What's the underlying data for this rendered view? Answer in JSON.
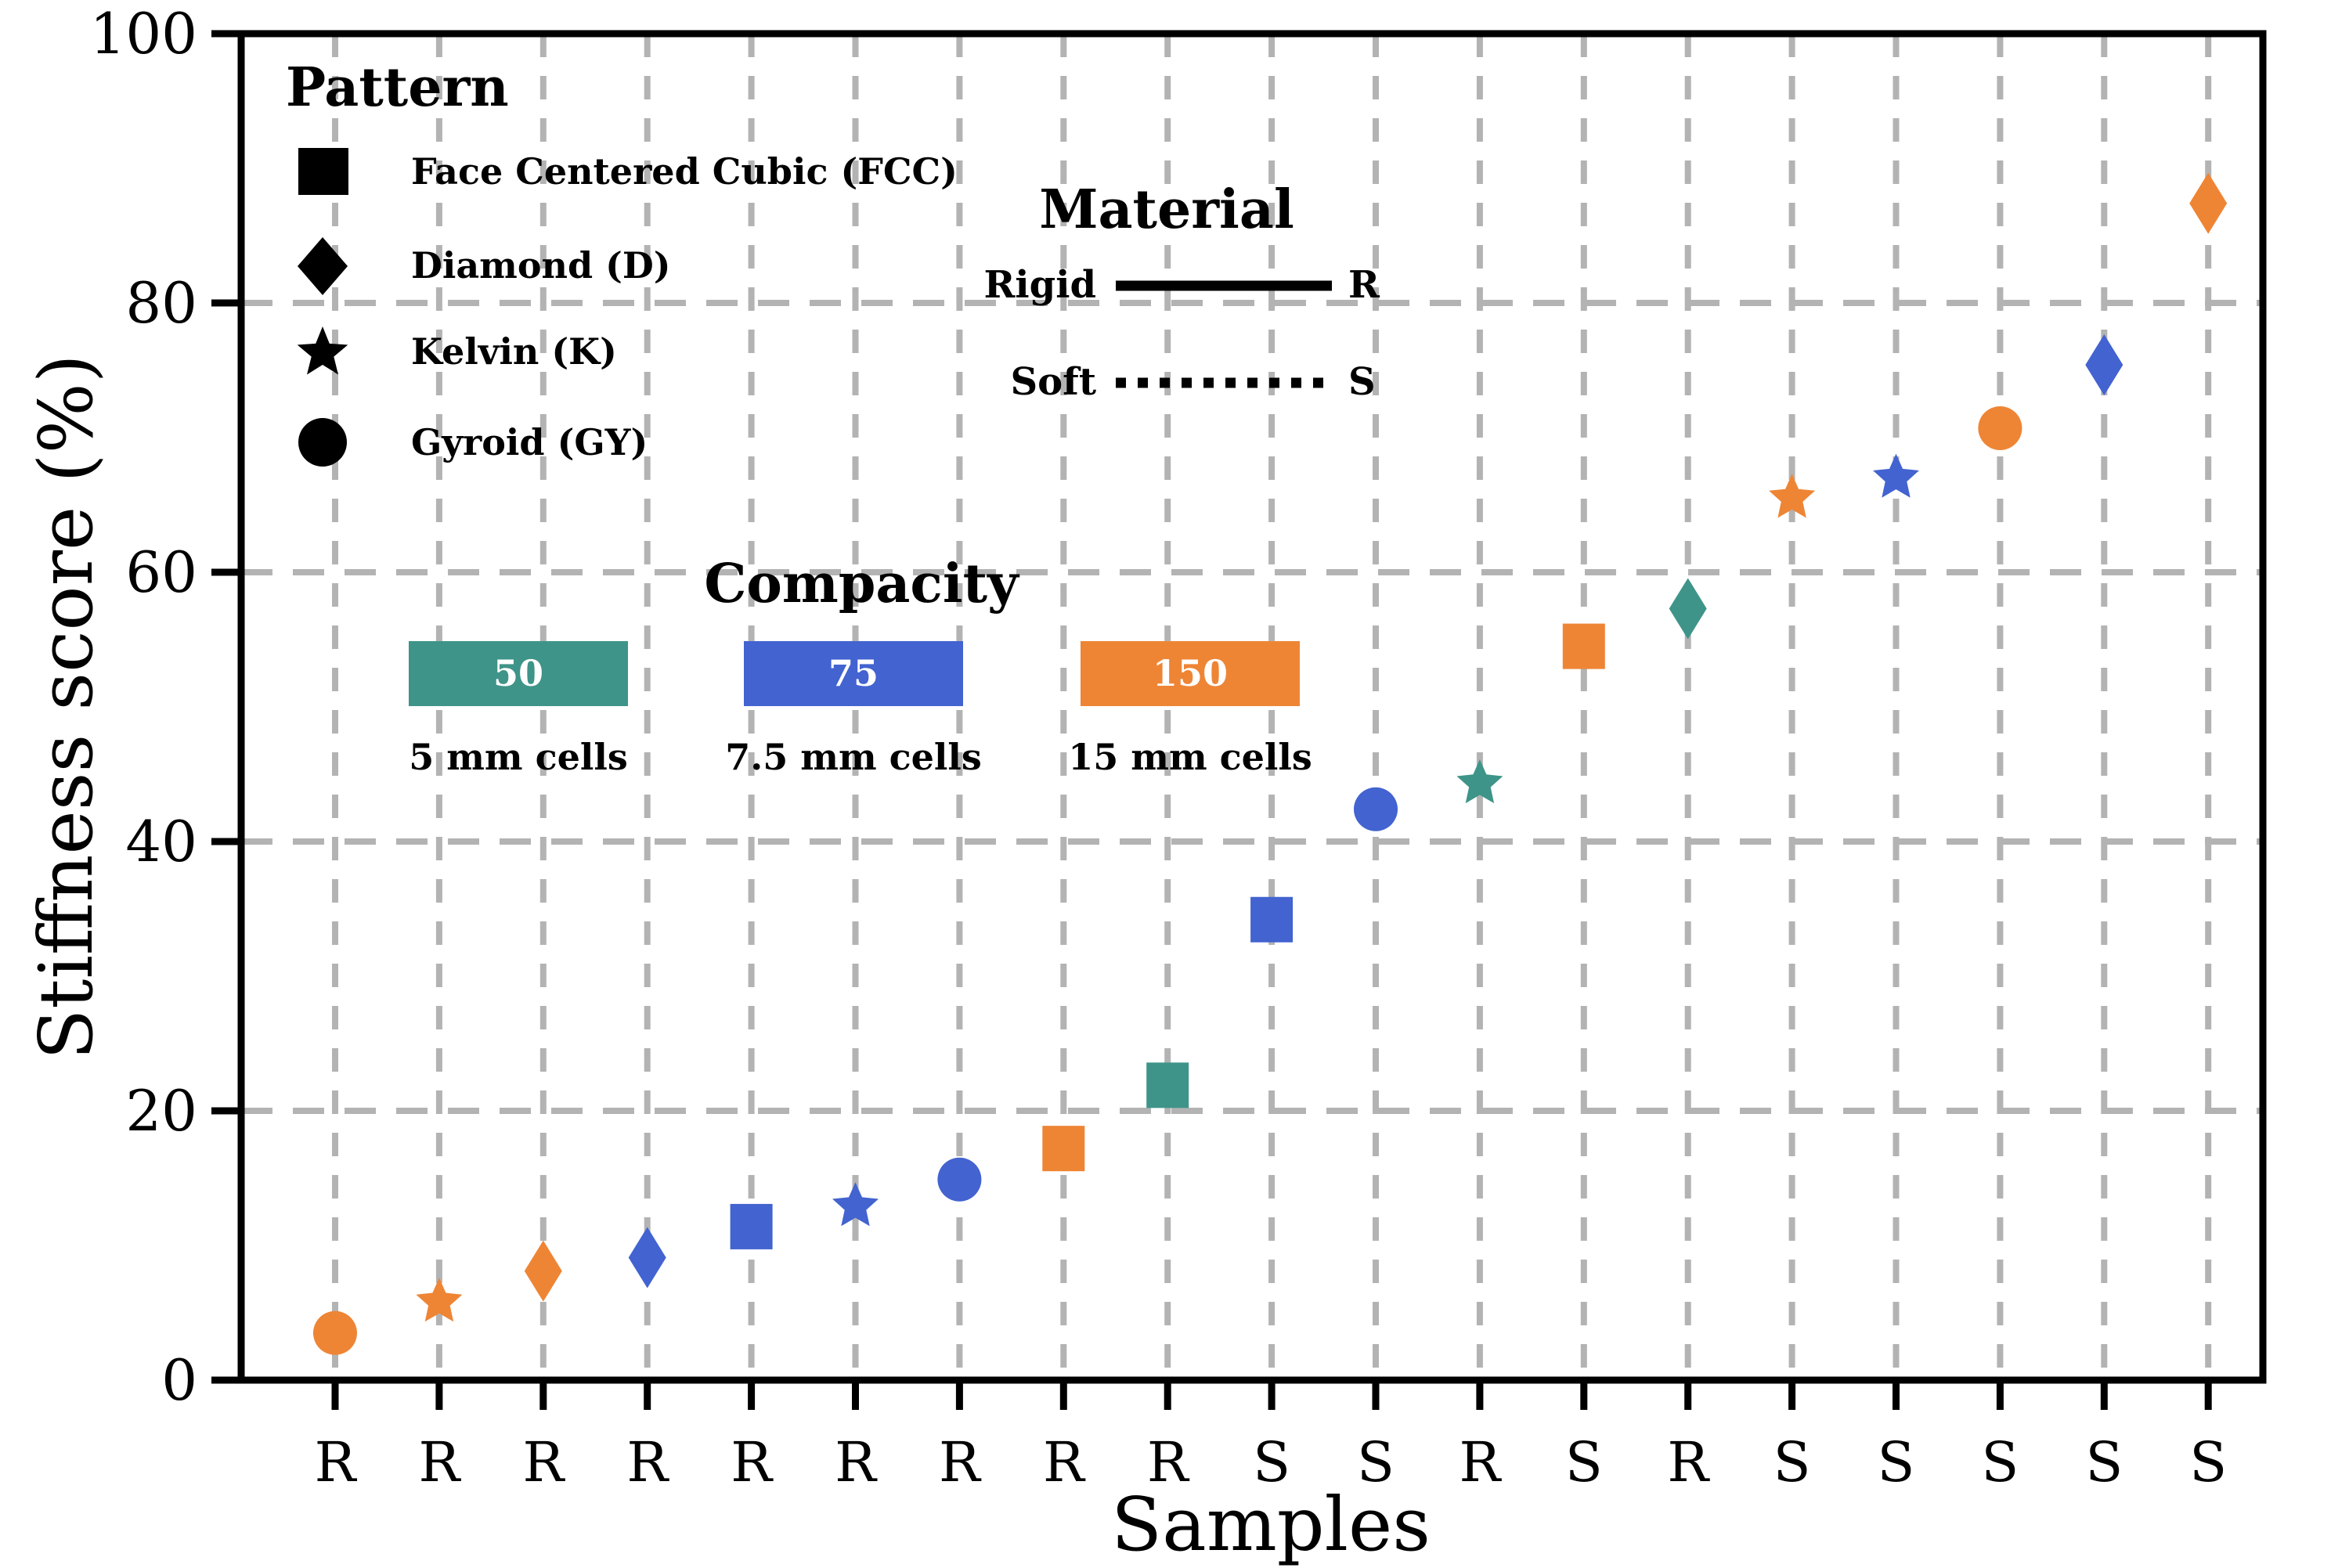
{
  "y_axis": {
    "title": "Stiffness score (%)",
    "tick_labels": [
      "0",
      "20",
      "40",
      "60",
      "80",
      "100"
    ]
  },
  "x_axis": {
    "title": "Samples"
  },
  "legend_pattern": {
    "title": "Pattern",
    "items": [
      {
        "icon": "square-icon",
        "label": "Face Centered Cubic (FCC)"
      },
      {
        "icon": "diamond-icon",
        "label": "Diamond (D)"
      },
      {
        "icon": "star-icon",
        "label": "Kelvin (K)"
      },
      {
        "icon": "circle-icon",
        "label": "Gyroid (GY)"
      }
    ]
  },
  "legend_material": {
    "title": "Material",
    "items": [
      {
        "label": "Rigid",
        "line_style": "solid",
        "code": "R"
      },
      {
        "label": "Soft",
        "line_style": "dotted",
        "code": "S"
      }
    ]
  },
  "legend_compacity": {
    "title": "Compacity",
    "items": [
      {
        "value": "50",
        "caption": "5 mm cells",
        "color": "#3E9488"
      },
      {
        "value": "75",
        "caption": "7.5 mm cells",
        "color": "#4263D0"
      },
      {
        "value": "150",
        "caption": "15 mm cells",
        "color": "#EE8535"
      }
    ]
  },
  "colors": {
    "axis": "#000000",
    "grid": "#b3b3b3",
    "compacity_50": "#3E9488",
    "compacity_75": "#4263D0",
    "compacity_150": "#EE8535"
  },
  "chart_data": {
    "type": "scatter",
    "title": "",
    "xlabel": "Samples",
    "ylabel": "Stiffness score (%)",
    "ylim": [
      0,
      100
    ],
    "yticks": [
      0,
      20,
      40,
      60,
      80,
      100
    ],
    "y_gridlines": [
      20,
      40,
      60,
      80
    ],
    "grid": "dashed",
    "categories": [
      "R",
      "R",
      "R",
      "R",
      "R",
      "R",
      "R",
      "R",
      "R",
      "S",
      "S",
      "R",
      "S",
      "R",
      "S",
      "S",
      "S",
      "S",
      "S"
    ],
    "points": [
      {
        "sample": 1,
        "material": "R",
        "pattern": "GY",
        "marker": "circle",
        "compacity": 150,
        "color": "#EE8535",
        "value": 3.5
      },
      {
        "sample": 2,
        "material": "R",
        "pattern": "K",
        "marker": "star",
        "compacity": 150,
        "color": "#EE8535",
        "value": 5.8
      },
      {
        "sample": 3,
        "material": "R",
        "pattern": "D",
        "marker": "diamond",
        "compacity": 150,
        "color": "#EE8535",
        "value": 8.1
      },
      {
        "sample": 4,
        "material": "R",
        "pattern": "D",
        "marker": "diamond",
        "compacity": 75,
        "color": "#4263D0",
        "value": 9.1
      },
      {
        "sample": 5,
        "material": "R",
        "pattern": "FCC",
        "marker": "square",
        "compacity": 75,
        "color": "#4263D0",
        "value": 11.4
      },
      {
        "sample": 6,
        "material": "R",
        "pattern": "K",
        "marker": "star",
        "compacity": 75,
        "color": "#4263D0",
        "value": 12.9
      },
      {
        "sample": 7,
        "material": "R",
        "pattern": "GY",
        "marker": "circle",
        "compacity": 75,
        "color": "#4263D0",
        "value": 14.9
      },
      {
        "sample": 8,
        "material": "R",
        "pattern": "FCC",
        "marker": "square",
        "compacity": 150,
        "color": "#EE8535",
        "value": 17.2
      },
      {
        "sample": 9,
        "material": "R",
        "pattern": "FCC",
        "marker": "square",
        "compacity": 50,
        "color": "#3E9488",
        "value": 21.9
      },
      {
        "sample": 10,
        "material": "S",
        "pattern": "FCC",
        "marker": "square",
        "compacity": 75,
        "color": "#4263D0",
        "value": 34.2
      },
      {
        "sample": 11,
        "material": "S",
        "pattern": "GY",
        "marker": "circle",
        "compacity": 75,
        "color": "#4263D0",
        "value": 42.4
      },
      {
        "sample": 12,
        "material": "R",
        "pattern": "K",
        "marker": "star",
        "compacity": 50,
        "color": "#3E9488",
        "value": 44.3
      },
      {
        "sample": 13,
        "material": "S",
        "pattern": "FCC",
        "marker": "square",
        "compacity": 150,
        "color": "#EE8535",
        "value": 54.5
      },
      {
        "sample": 14,
        "material": "R",
        "pattern": "D",
        "marker": "diamond",
        "compacity": 50,
        "color": "#3E9488",
        "value": 57.3
      },
      {
        "sample": 15,
        "material": "S",
        "pattern": "K",
        "marker": "star",
        "compacity": 150,
        "color": "#EE8535",
        "value": 65.5
      },
      {
        "sample": 16,
        "material": "S",
        "pattern": "K",
        "marker": "star",
        "compacity": 75,
        "color": "#4263D0",
        "value": 67.0
      },
      {
        "sample": 17,
        "material": "S",
        "pattern": "GY",
        "marker": "circle",
        "compacity": 150,
        "color": "#EE8535",
        "value": 70.7
      },
      {
        "sample": 18,
        "material": "S",
        "pattern": "D",
        "marker": "diamond",
        "compacity": 75,
        "color": "#4263D0",
        "value": 75.4
      },
      {
        "sample": 19,
        "material": "S",
        "pattern": "D",
        "marker": "diamond",
        "compacity": 150,
        "color": "#EE8535",
        "value": 87.4
      }
    ]
  }
}
